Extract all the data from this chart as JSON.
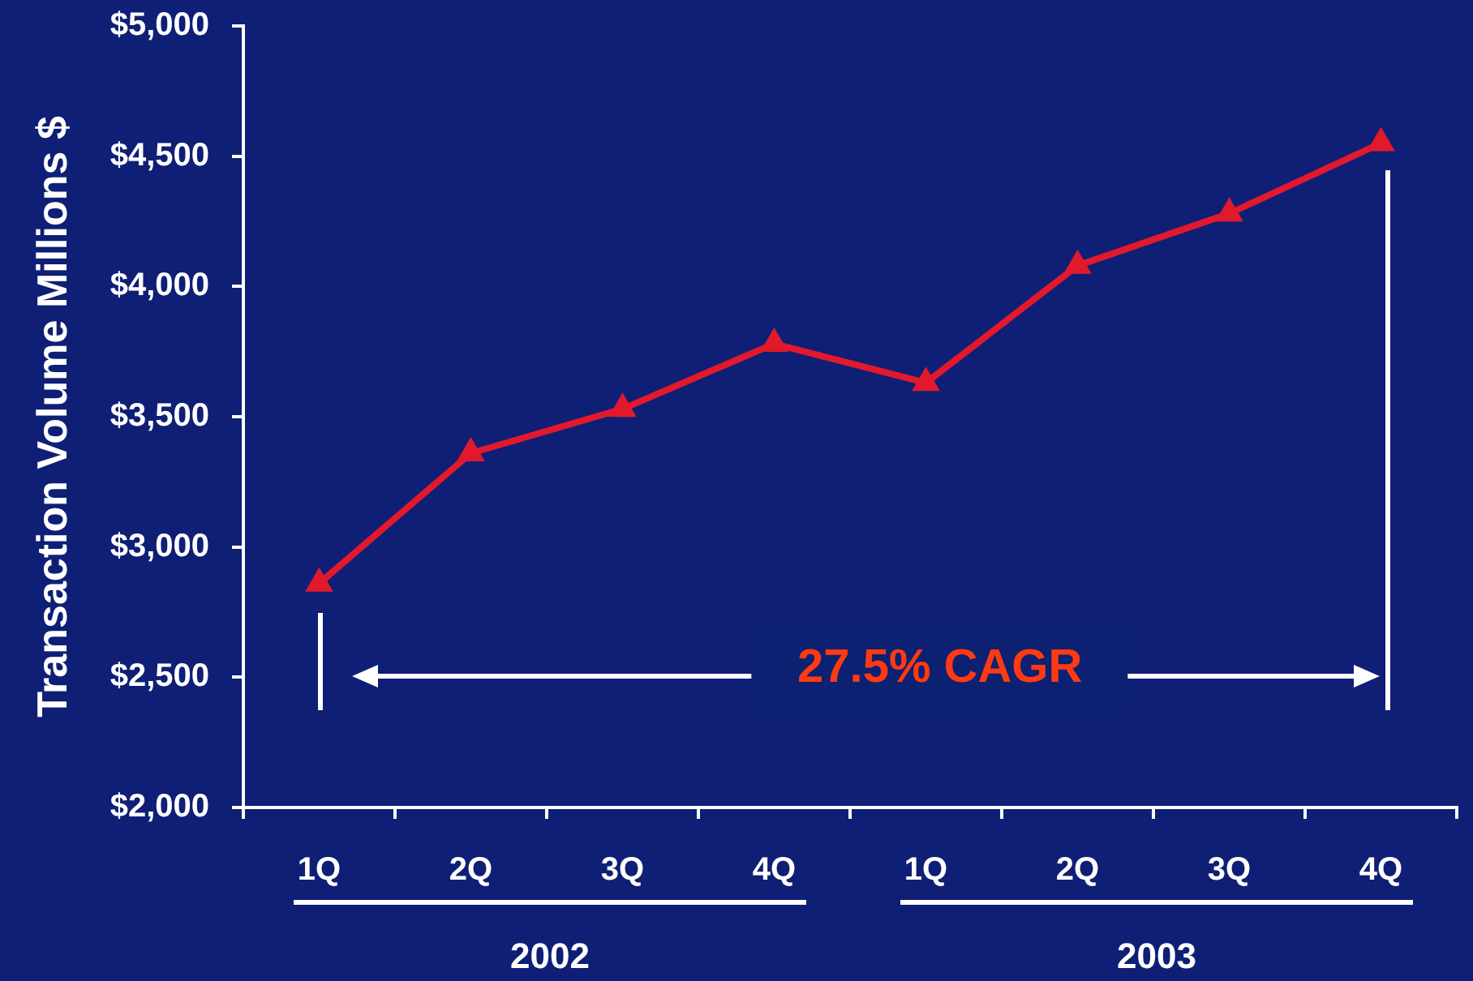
{
  "chart_data": {
    "type": "line",
    "ylabel": "Transaction Volume Millions $",
    "categories": [
      "1Q",
      "2Q",
      "3Q",
      "4Q",
      "1Q",
      "2Q",
      "3Q",
      "4Q"
    ],
    "series": [
      {
        "color": "#e2192c",
        "values": [
          2860,
          3360,
          3530,
          3780,
          3630,
          4080,
          4280,
          4550
        ]
      }
    ],
    "ylim": [
      2000,
      5000
    ],
    "yticks": [
      {
        "value": 2000,
        "label": "$2,000"
      },
      {
        "value": 2500,
        "label": "$2,500"
      },
      {
        "value": 3000,
        "label": "$3,000"
      },
      {
        "value": 3500,
        "label": "$3,500"
      },
      {
        "value": 4000,
        "label": "$4,000"
      },
      {
        "value": 4500,
        "label": "$4,500"
      },
      {
        "value": 5000,
        "label": "$5,000"
      }
    ],
    "annotations": [
      "27.5% CAGR",
      "2002",
      "2003"
    ],
    "marker": "triangle",
    "line_style": "solid"
  }
}
